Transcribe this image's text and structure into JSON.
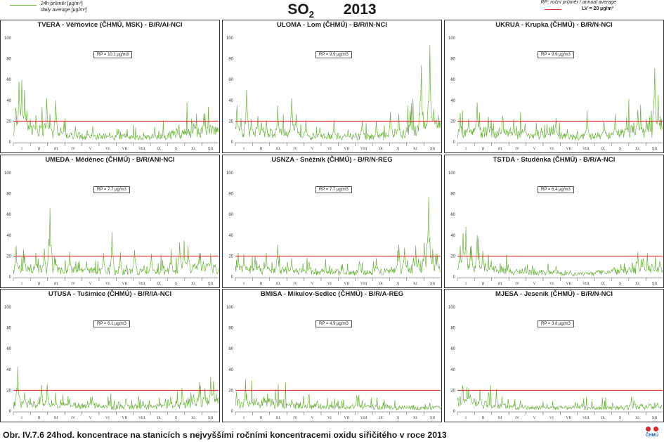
{
  "header": {
    "title_main": "SO",
    "title_sub": "2",
    "year": "2013",
    "legend_line1": "24h průměr [µg/m³]",
    "legend_line2": "daily average [µg/m³]",
    "legend_rp": "RP: roční průměr / annual average",
    "legend_lv": "LV = 20 µg/m³",
    "series_color": "#6cb33e",
    "limit_color": "#e03030"
  },
  "caption": "Obr. IV.7.6  24hod. koncentrace na stanicích s nejvyššími ročními koncentracemi oxidu siřičitého v roce 2013",
  "logo_text": "ČHMÚ",
  "chart_data": [
    {
      "type": "line",
      "title": "TVERA - Věřňovice (ČHMÚ, MSK) - B/R/AI-NCI",
      "rp": "RP = 10.1 µg/m3",
      "ylim": [
        0,
        100
      ],
      "yticks": [
        0,
        20,
        40,
        60,
        80,
        100
      ],
      "months": [
        "I",
        "II",
        "III",
        "IV",
        "V",
        "VI",
        "VII",
        "VIII",
        "IX",
        "X",
        "XI",
        "XII"
      ],
      "limit": 20,
      "peaks": [
        [
          4,
          33
        ],
        [
          10,
          58
        ],
        [
          15,
          60
        ],
        [
          20,
          50
        ],
        [
          24,
          30
        ],
        [
          30,
          22
        ],
        [
          35,
          15
        ],
        [
          40,
          26
        ],
        [
          48,
          12
        ],
        [
          60,
          30
        ],
        [
          65,
          27
        ],
        [
          75,
          40
        ],
        [
          90,
          20
        ],
        [
          110,
          15
        ],
        [
          140,
          10
        ],
        [
          200,
          8
        ],
        [
          250,
          8
        ],
        [
          290,
          13
        ],
        [
          320,
          18
        ],
        [
          338,
          27
        ],
        [
          350,
          16
        ],
        [
          360,
          14
        ]
      ],
      "base": [
        10,
        12,
        7,
        6,
        5,
        5,
        5,
        4,
        5,
        7,
        9,
        10
      ]
    },
    {
      "type": "line",
      "title": "ULOMA - Lom (ČHMÚ) - B/R/IN-NCI",
      "rp": "RP = 9.9 µg/m3",
      "ylim": [
        0,
        100
      ],
      "yticks": [
        0,
        20,
        40,
        60,
        80,
        100
      ],
      "months": [
        "I",
        "II",
        "III",
        "IV",
        "V",
        "VI",
        "VII",
        "VIII",
        "IX",
        "X",
        "XI",
        "XII"
      ],
      "limit": 20,
      "peaks": [
        [
          3,
          35
        ],
        [
          10,
          23
        ],
        [
          20,
          50
        ],
        [
          28,
          22
        ],
        [
          40,
          25
        ],
        [
          55,
          21
        ],
        [
          75,
          35
        ],
        [
          100,
          42
        ],
        [
          108,
          27
        ],
        [
          125,
          21
        ],
        [
          150,
          14
        ],
        [
          175,
          21
        ],
        [
          200,
          12
        ],
        [
          225,
          20
        ],
        [
          250,
          16
        ],
        [
          275,
          29
        ],
        [
          290,
          27
        ],
        [
          310,
          30
        ],
        [
          330,
          74
        ],
        [
          345,
          93
        ],
        [
          352,
          32
        ],
        [
          360,
          26
        ]
      ],
      "base": [
        8,
        9,
        8,
        7,
        6,
        5,
        5,
        5,
        6,
        8,
        11,
        13
      ]
    },
    {
      "type": "line",
      "title": "UKRUA - Krupka (ČHMÚ) - B/R/N-NCI",
      "rp": "RP = 9.6 µg/m3",
      "ylim": [
        0,
        100
      ],
      "yticks": [
        0,
        20,
        40,
        60,
        80,
        100
      ],
      "months": [
        "I",
        "II",
        "III",
        "IV",
        "V",
        "VI",
        "VII",
        "VIII",
        "IX",
        "X",
        "XI",
        "XII"
      ],
      "limit": 20,
      "peaks": [
        [
          5,
          28
        ],
        [
          20,
          22
        ],
        [
          35,
          38
        ],
        [
          55,
          24
        ],
        [
          80,
          25
        ],
        [
          100,
          22
        ],
        [
          120,
          18
        ],
        [
          140,
          16
        ],
        [
          175,
          23
        ],
        [
          195,
          12
        ],
        [
          230,
          30
        ],
        [
          260,
          20
        ],
        [
          280,
          27
        ],
        [
          300,
          24
        ],
        [
          320,
          31
        ],
        [
          335,
          22
        ],
        [
          350,
          71
        ],
        [
          356,
          45
        ],
        [
          362,
          22
        ]
      ],
      "base": [
        9,
        9,
        8,
        7,
        6,
        6,
        5,
        5,
        6,
        8,
        10,
        11
      ]
    },
    {
      "type": "line",
      "title": "UMEDA - Měděnec (ČHMÚ) - B/R/ANI-NCI",
      "rp": "RP = 7.7 µg/m3",
      "ylim": [
        0,
        100
      ],
      "yticks": [
        0,
        20,
        40,
        60,
        80,
        100
      ],
      "months": [
        "I",
        "II",
        "III",
        "IV",
        "V",
        "VI",
        "VII",
        "VIII",
        "IX",
        "X",
        "XI",
        "XII"
      ],
      "limit": 20,
      "peaks": [
        [
          5,
          30
        ],
        [
          20,
          22
        ],
        [
          40,
          23
        ],
        [
          55,
          27
        ],
        [
          65,
          66
        ],
        [
          75,
          18
        ],
        [
          100,
          24
        ],
        [
          130,
          15
        ],
        [
          160,
          23
        ],
        [
          175,
          43
        ],
        [
          190,
          24
        ],
        [
          215,
          26
        ],
        [
          245,
          22
        ],
        [
          280,
          27
        ],
        [
          295,
          33
        ],
        [
          303,
          35
        ],
        [
          310,
          30
        ],
        [
          330,
          23
        ],
        [
          350,
          22
        ]
      ],
      "base": [
        7,
        7,
        6,
        6,
        6,
        5,
        5,
        5,
        5,
        6,
        8,
        8
      ]
    },
    {
      "type": "line",
      "title": "USNZA - Sněžník (ČHMÚ) - B/R/N-REG",
      "rp": "RP = 7.7 µg/m3",
      "ylim": [
        0,
        100
      ],
      "yticks": [
        0,
        20,
        40,
        60,
        80,
        100
      ],
      "months": [
        "I",
        "II",
        "III",
        "IV",
        "V",
        "VI",
        "VII",
        "VIII",
        "IX",
        "X",
        "XI",
        "XII"
      ],
      "limit": 20,
      "peaks": [
        [
          5,
          23
        ],
        [
          15,
          22
        ],
        [
          35,
          20
        ],
        [
          55,
          23
        ],
        [
          75,
          31
        ],
        [
          100,
          18
        ],
        [
          130,
          13
        ],
        [
          160,
          10
        ],
        [
          190,
          12
        ],
        [
          220,
          15
        ],
        [
          250,
          18
        ],
        [
          290,
          31
        ],
        [
          300,
          28
        ],
        [
          320,
          30
        ],
        [
          335,
          33
        ],
        [
          343,
          77
        ],
        [
          350,
          27
        ],
        [
          358,
          22
        ]
      ],
      "base": [
        7,
        6,
        6,
        5,
        5,
        5,
        4,
        4,
        5,
        6,
        8,
        9
      ]
    },
    {
      "type": "line",
      "title": "TSTDA - Studénka (ČHMÚ) - B/R/A-NCI",
      "rp": "RP = 6.4 µg/m3",
      "ylim": [
        0,
        100
      ],
      "yticks": [
        0,
        20,
        40,
        60,
        80,
        100
      ],
      "months": [
        "I",
        "II",
        "III",
        "IV",
        "V",
        "VI",
        "VII",
        "VIII",
        "IX",
        "X",
        "XI",
        "XII"
      ],
      "limit": 20,
      "peaks": [
        [
          5,
          30
        ],
        [
          10,
          42
        ],
        [
          15,
          48
        ],
        [
          25,
          30
        ],
        [
          35,
          40
        ],
        [
          45,
          25
        ],
        [
          60,
          16
        ],
        [
          90,
          12
        ],
        [
          120,
          10
        ],
        [
          160,
          8
        ],
        [
          200,
          6
        ],
        [
          250,
          6
        ],
        [
          290,
          12
        ],
        [
          320,
          24
        ],
        [
          330,
          18
        ],
        [
          345,
          12
        ],
        [
          358,
          10
        ]
      ],
      "base": [
        9,
        9,
        7,
        5,
        4,
        4,
        3,
        3,
        4,
        5,
        6,
        7
      ]
    },
    {
      "type": "line",
      "title": "UTUSA - Tušimice (ČHMÚ) - B/R/IA-NCI",
      "rp": "RP = 6.1 µg/m3",
      "ylim": [
        0,
        100
      ],
      "yticks": [
        0,
        20,
        40,
        60,
        80,
        100
      ],
      "months": [
        "I",
        "II",
        "III",
        "IV",
        "V",
        "VI",
        "VII",
        "VIII",
        "IX",
        "X",
        "XI",
        "XII"
      ],
      "limit": 20,
      "peaks": [
        [
          8,
          43
        ],
        [
          20,
          18
        ],
        [
          30,
          13
        ],
        [
          50,
          25
        ],
        [
          60,
          26
        ],
        [
          75,
          13
        ],
        [
          100,
          12
        ],
        [
          140,
          14
        ],
        [
          170,
          10
        ],
        [
          200,
          12
        ],
        [
          230,
          10
        ],
        [
          270,
          12
        ],
        [
          300,
          17
        ],
        [
          320,
          16
        ],
        [
          330,
          28
        ],
        [
          340,
          22
        ],
        [
          350,
          33
        ],
        [
          355,
          29
        ]
      ],
      "base": [
        6,
        6,
        5,
        5,
        5,
        4,
        4,
        4,
        4,
        6,
        8,
        9
      ]
    },
    {
      "type": "line",
      "title": "BMISA - Mikulov-Sedlec (ČHMÚ) - B/R/A-REG",
      "rp": "RP = 4.9 µg/m3",
      "ylim": [
        0,
        100
      ],
      "yticks": [
        0,
        20,
        40,
        60,
        80,
        100
      ],
      "months": [
        "I",
        "II",
        "III",
        "IV",
        "V",
        "VI",
        "VII",
        "VIII",
        "IX",
        "X",
        "XI",
        "XII"
      ],
      "limit": 20,
      "peaks": [
        [
          20,
          17
        ],
        [
          50,
          14
        ],
        [
          65,
          12
        ],
        [
          100,
          11
        ],
        [
          140,
          7
        ],
        [
          180,
          8
        ],
        [
          230,
          8
        ],
        [
          270,
          6
        ],
        [
          300,
          5
        ],
        [
          330,
          4
        ],
        [
          358,
          4
        ]
      ],
      "base": [
        7,
        8,
        7,
        6,
        5,
        4,
        4,
        4,
        4,
        3,
        3,
        3
      ]
    },
    {
      "type": "line",
      "title": "MJESA - Jeseník (ČHMÚ) - B/R/N-NCI",
      "rp": "RP = 3.8 µg/m3",
      "ylim": [
        0,
        100
      ],
      "yticks": [
        0,
        20,
        40,
        60,
        80,
        100
      ],
      "months": [
        "I",
        "II",
        "III",
        "IV",
        "V",
        "VI",
        "VII",
        "VIII",
        "IX",
        "X",
        "XI",
        "XII"
      ],
      "limit": 20,
      "peaks": [
        [
          10,
          23
        ],
        [
          20,
          22
        ],
        [
          30,
          12
        ],
        [
          40,
          21
        ],
        [
          70,
          9
        ],
        [
          100,
          7
        ],
        [
          150,
          5
        ],
        [
          200,
          4
        ],
        [
          250,
          3
        ],
        [
          290,
          5
        ],
        [
          320,
          5
        ],
        [
          340,
          7
        ],
        [
          355,
          8
        ]
      ],
      "base": [
        8,
        7,
        5,
        4,
        3,
        3,
        3,
        3,
        3,
        3,
        4,
        4
      ]
    }
  ]
}
